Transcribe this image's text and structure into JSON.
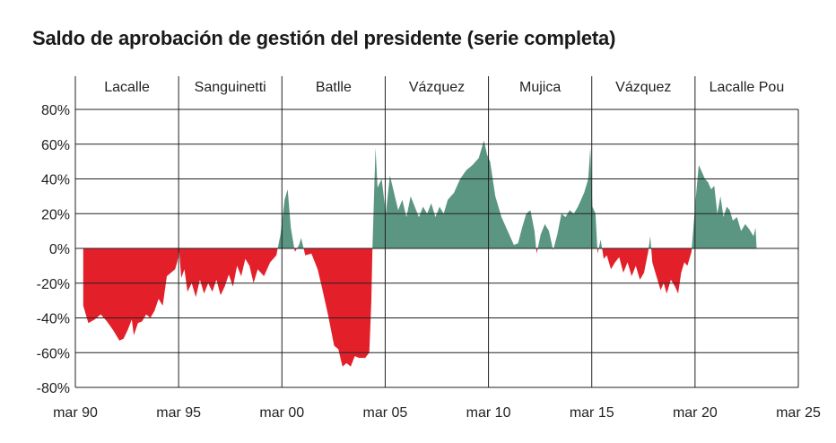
{
  "chart_data": {
    "type": "area",
    "title": "Saldo de aprobación de gestión del presidente (serie completa)",
    "xlabel": "",
    "ylabel": "",
    "ylim": [
      -80,
      80
    ],
    "y_ticks": [
      "80%",
      "60%",
      "40%",
      "20%",
      "0%",
      "-20%",
      "-40%",
      "-60%",
      "-80%"
    ],
    "x_ticks": [
      {
        "label": "mar 90",
        "year": 1990.17
      },
      {
        "label": "mar 95",
        "year": 1995.17
      },
      {
        "label": "mar 00",
        "year": 2000.17
      },
      {
        "label": "mar 05",
        "year": 2005.17
      },
      {
        "label": "mar 10",
        "year": 2010.17
      },
      {
        "label": "mar 15",
        "year": 2015.17
      },
      {
        "label": "mar 20",
        "year": 2020.17
      },
      {
        "label": "mar 25",
        "year": 2025.17
      }
    ],
    "periods": [
      {
        "name": "Lacalle",
        "start": 1990.17,
        "end": 1995.17
      },
      {
        "name": "Sanguinetti",
        "start": 1995.17,
        "end": 2000.17
      },
      {
        "name": "Batlle",
        "start": 2000.17,
        "end": 2005.17
      },
      {
        "name": "Vázquez",
        "start": 2005.17,
        "end": 2010.17
      },
      {
        "name": "Mujica",
        "start": 2010.17,
        "end": 2015.17
      },
      {
        "name": "Vázquez",
        "start": 2015.17,
        "end": 2020.17
      },
      {
        "name": "Lacalle Pou",
        "start": 2020.17,
        "end": 2025.17
      }
    ],
    "colors": {
      "positive": "#5a9682",
      "negative": "#e3202a",
      "grid": "#222222"
    },
    "grid": true,
    "series": [
      {
        "points": [
          [
            1990.55,
            -33
          ],
          [
            1990.8,
            -43
          ],
          [
            1991.1,
            -41
          ],
          [
            1991.4,
            -38
          ],
          [
            1991.7,
            -42
          ],
          [
            1992.0,
            -47
          ],
          [
            1992.3,
            -53
          ],
          [
            1992.5,
            -52
          ],
          [
            1992.7,
            -47
          ],
          [
            1992.9,
            -41
          ],
          [
            1993.0,
            -50
          ],
          [
            1993.2,
            -43
          ],
          [
            1993.4,
            -42
          ],
          [
            1993.6,
            -38
          ],
          [
            1993.8,
            -40
          ],
          [
            1994.0,
            -36
          ],
          [
            1994.2,
            -29
          ],
          [
            1994.4,
            -33
          ],
          [
            1994.6,
            -16
          ],
          [
            1994.8,
            -14
          ],
          [
            1995.0,
            -12
          ],
          [
            1995.1,
            -8
          ],
          [
            1995.2,
            -2
          ],
          [
            1995.3,
            -17
          ],
          [
            1995.45,
            -12
          ],
          [
            1995.6,
            -25
          ],
          [
            1995.8,
            -20
          ],
          [
            1996.0,
            -28
          ],
          [
            1996.2,
            -18
          ],
          [
            1996.4,
            -26
          ],
          [
            1996.6,
            -20
          ],
          [
            1996.8,
            -25
          ],
          [
            1997.0,
            -18
          ],
          [
            1997.2,
            -27
          ],
          [
            1997.4,
            -22
          ],
          [
            1997.6,
            -15
          ],
          [
            1997.8,
            -22
          ],
          [
            1998.0,
            -10
          ],
          [
            1998.2,
            -16
          ],
          [
            1998.4,
            -6
          ],
          [
            1998.6,
            -10
          ],
          [
            1998.8,
            -20
          ],
          [
            1999.0,
            -12
          ],
          [
            1999.3,
            -16
          ],
          [
            1999.6,
            -8
          ],
          [
            1999.9,
            -4
          ],
          [
            2000.1,
            8
          ],
          [
            2000.3,
            28
          ],
          [
            2000.45,
            34
          ],
          [
            2000.6,
            12
          ],
          [
            2000.8,
            -2
          ],
          [
            2001.0,
            2
          ],
          [
            2001.1,
            6
          ],
          [
            2001.3,
            -4
          ],
          [
            2001.6,
            -3
          ],
          [
            2001.9,
            -12
          ],
          [
            2002.1,
            -22
          ],
          [
            2002.4,
            -38
          ],
          [
            2002.7,
            -56
          ],
          [
            2002.9,
            -58
          ],
          [
            2003.1,
            -68
          ],
          [
            2003.3,
            -66
          ],
          [
            2003.5,
            -68
          ],
          [
            2003.7,
            -62
          ],
          [
            2003.9,
            -63
          ],
          [
            2004.2,
            -63
          ],
          [
            2004.4,
            -60
          ],
          [
            2004.5,
            -30
          ],
          [
            2004.55,
            0
          ],
          [
            2004.7,
            58
          ],
          [
            2004.8,
            35
          ],
          [
            2005.0,
            40
          ],
          [
            2005.2,
            20
          ],
          [
            2005.4,
            42
          ],
          [
            2005.6,
            32
          ],
          [
            2005.8,
            22
          ],
          [
            2006.0,
            28
          ],
          [
            2006.2,
            18
          ],
          [
            2006.4,
            30
          ],
          [
            2006.6,
            24
          ],
          [
            2006.8,
            18
          ],
          [
            2007.0,
            24
          ],
          [
            2007.2,
            20
          ],
          [
            2007.4,
            26
          ],
          [
            2007.6,
            18
          ],
          [
            2007.8,
            24
          ],
          [
            2008.0,
            20
          ],
          [
            2008.2,
            28
          ],
          [
            2008.5,
            32
          ],
          [
            2008.8,
            40
          ],
          [
            2009.1,
            45
          ],
          [
            2009.4,
            48
          ],
          [
            2009.7,
            52
          ],
          [
            2009.95,
            62
          ],
          [
            2010.1,
            54
          ],
          [
            2010.25,
            50
          ],
          [
            2010.5,
            30
          ],
          [
            2010.8,
            18
          ],
          [
            2011.1,
            10
          ],
          [
            2011.4,
            2
          ],
          [
            2011.6,
            3
          ],
          [
            2011.8,
            12
          ],
          [
            2012.0,
            20
          ],
          [
            2012.2,
            22
          ],
          [
            2012.4,
            10
          ],
          [
            2012.5,
            -3
          ],
          [
            2012.7,
            8
          ],
          [
            2012.9,
            14
          ],
          [
            2013.1,
            10
          ],
          [
            2013.3,
            -1
          ],
          [
            2013.5,
            8
          ],
          [
            2013.7,
            20
          ],
          [
            2013.9,
            18
          ],
          [
            2014.1,
            22
          ],
          [
            2014.3,
            20
          ],
          [
            2014.5,
            24
          ],
          [
            2014.8,
            32
          ],
          [
            2015.0,
            40
          ],
          [
            2015.1,
            58
          ],
          [
            2015.2,
            24
          ],
          [
            2015.35,
            20
          ],
          [
            2015.45,
            -3
          ],
          [
            2015.6,
            5
          ],
          [
            2015.75,
            -6
          ],
          [
            2015.9,
            -4
          ],
          [
            2016.1,
            -12
          ],
          [
            2016.3,
            -8
          ],
          [
            2016.5,
            -5
          ],
          [
            2016.7,
            -14
          ],
          [
            2016.9,
            -8
          ],
          [
            2017.1,
            -16
          ],
          [
            2017.3,
            -10
          ],
          [
            2017.5,
            -18
          ],
          [
            2017.7,
            -14
          ],
          [
            2017.9,
            -2
          ],
          [
            2018.0,
            7
          ],
          [
            2018.1,
            -8
          ],
          [
            2018.3,
            -16
          ],
          [
            2018.5,
            -24
          ],
          [
            2018.65,
            -20
          ],
          [
            2018.8,
            -26
          ],
          [
            2019.0,
            -18
          ],
          [
            2019.2,
            -22
          ],
          [
            2019.35,
            -26
          ],
          [
            2019.5,
            -14
          ],
          [
            2019.65,
            -8
          ],
          [
            2019.8,
            -10
          ],
          [
            2020.0,
            -2
          ],
          [
            2020.2,
            28
          ],
          [
            2020.35,
            48
          ],
          [
            2020.5,
            44
          ],
          [
            2020.65,
            40
          ],
          [
            2020.8,
            38
          ],
          [
            2020.95,
            34
          ],
          [
            2021.1,
            36
          ],
          [
            2021.25,
            20
          ],
          [
            2021.4,
            30
          ],
          [
            2021.55,
            18
          ],
          [
            2021.7,
            24
          ],
          [
            2021.85,
            22
          ],
          [
            2022.0,
            16
          ],
          [
            2022.2,
            18
          ],
          [
            2022.4,
            10
          ],
          [
            2022.6,
            14
          ],
          [
            2022.8,
            11
          ],
          [
            2023.0,
            7
          ],
          [
            2023.1,
            12
          ],
          [
            2023.15,
            0
          ]
        ]
      }
    ]
  }
}
